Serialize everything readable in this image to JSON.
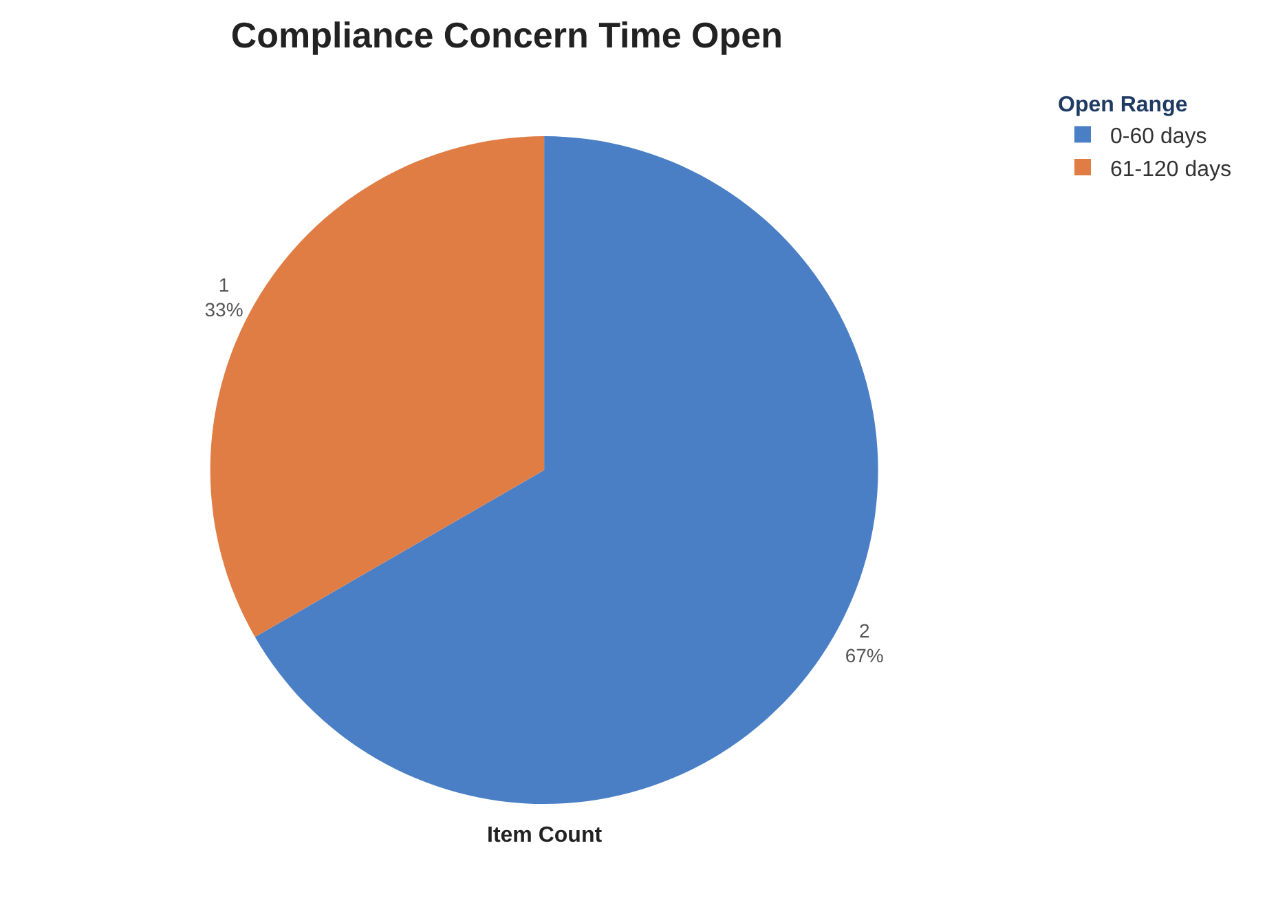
{
  "chart_data": {
    "type": "pie",
    "title": "Compliance Concern Time Open",
    "xlabel": "Item Count",
    "legend_title": "Open Range",
    "legend": "top right",
    "categories": [
      "0-60 days",
      "61-120 days"
    ],
    "values": [
      2,
      1
    ],
    "colors": [
      "#4a7fc6",
      "#e07d45"
    ],
    "value_labels": [
      "2\n67%",
      "1\n33%"
    ]
  }
}
